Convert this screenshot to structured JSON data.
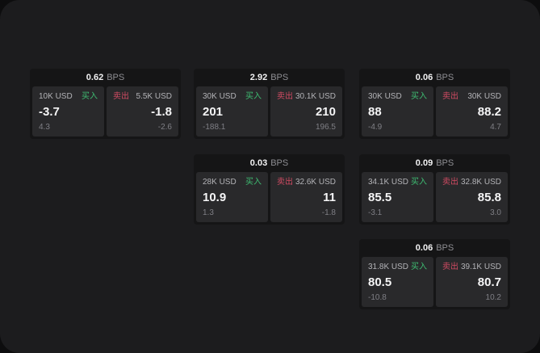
{
  "labels": {
    "buy": "买入",
    "sell": "卖出",
    "bps_unit": "BPS"
  },
  "colors": {
    "buy_green": "#3ebd72",
    "sell_red": "#d14b63",
    "window_background": "#1c1c1e",
    "card_background": "#151516",
    "panel_background": "#29292b"
  },
  "cards": [
    {
      "bps": "0.62",
      "buy": {
        "amount": "10K USD",
        "price": "-3.7",
        "delta": "4.3"
      },
      "sell": {
        "amount": "5.5K USD",
        "price": "-1.8",
        "delta": "-2.6"
      }
    },
    {
      "bps": "2.92",
      "buy": {
        "amount": "30K USD",
        "price": "201",
        "delta": "-188.1"
      },
      "sell": {
        "amount": "30.1K USD",
        "price": "210",
        "delta": "196.5"
      }
    },
    {
      "bps": "0.06",
      "buy": {
        "amount": "30K USD",
        "price": "88",
        "delta": "-4.9"
      },
      "sell": {
        "amount": "30K USD",
        "price": "88.2",
        "delta": "4.7"
      }
    },
    {
      "bps": "0.03",
      "buy": {
        "amount": "28K USD",
        "price": "10.9",
        "delta": "1.3"
      },
      "sell": {
        "amount": "32.6K USD",
        "price": "11",
        "delta": "-1.8"
      }
    },
    {
      "bps": "0.09",
      "buy": {
        "amount": "34.1K USD",
        "price": "85.5",
        "delta": "-3.1"
      },
      "sell": {
        "amount": "32.8K USD",
        "price": "85.8",
        "delta": "3.0"
      }
    },
    {
      "bps": "0.06",
      "buy": {
        "amount": "31.8K USD",
        "price": "80.5",
        "delta": "-10.8"
      },
      "sell": {
        "amount": "39.1K USD",
        "price": "80.7",
        "delta": "10.2"
      }
    }
  ]
}
